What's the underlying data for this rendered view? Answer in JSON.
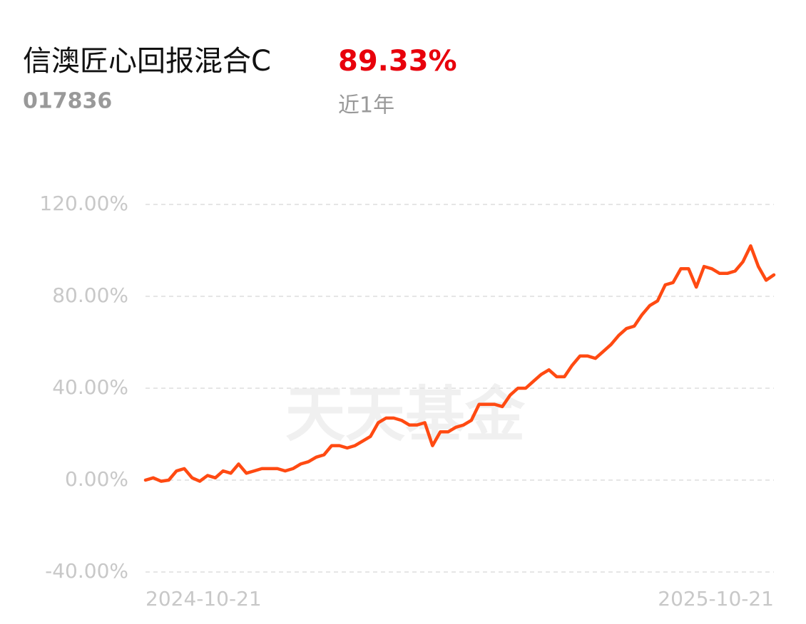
{
  "header": {
    "title": "信澳匠心回报混合C",
    "return": "89.33%",
    "code": "017836",
    "period": "近1年"
  },
  "watermark": "天天基金",
  "chart_data": {
    "type": "line",
    "categories": [
      "2024-10-21",
      null,
      null,
      null,
      null,
      null,
      null,
      null,
      null,
      null,
      null,
      null,
      null,
      null,
      null,
      null,
      null,
      null,
      null,
      null,
      null,
      null,
      null,
      null,
      null,
      null,
      null,
      null,
      null,
      null,
      null,
      null,
      null,
      null,
      null,
      null,
      null,
      null,
      null,
      null,
      null,
      null,
      null,
      null,
      null,
      null,
      null,
      null,
      null,
      null,
      null,
      null,
      null,
      null,
      null,
      null,
      null,
      null,
      null,
      null,
      null,
      null,
      null,
      null,
      null,
      null,
      null,
      null,
      null,
      null,
      null,
      null,
      null,
      null,
      null,
      null,
      null,
      null,
      null,
      null,
      null,
      "2025-10-21"
    ],
    "series": [
      {
        "color": "#ff4a12",
        "values": [
          0,
          1,
          -0.5,
          0,
          4,
          5,
          1,
          -0.5,
          2,
          1,
          4,
          3,
          7,
          3,
          4,
          5,
          5,
          5,
          4,
          5,
          7,
          8,
          10,
          11,
          15,
          15,
          14,
          15,
          17,
          19,
          25,
          27,
          27,
          26,
          24,
          24,
          25,
          15,
          21,
          21,
          23,
          24,
          26,
          33,
          33,
          33,
          32,
          37,
          40,
          40,
          43,
          46,
          48,
          45,
          45,
          50,
          54,
          54,
          53,
          56,
          59,
          63,
          66,
          67,
          72,
          76,
          78,
          85,
          86,
          92,
          92,
          84,
          93,
          92,
          90,
          90,
          91,
          95,
          102,
          93,
          87,
          89.33
        ]
      }
    ],
    "ylim": [
      -40,
      120
    ],
    "yticks": [
      {
        "value": -40,
        "label": "-40.00%"
      },
      {
        "value": 0,
        "label": "0.00%"
      },
      {
        "value": 40,
        "label": "40.00%"
      },
      {
        "value": 80,
        "label": "80.00%"
      },
      {
        "value": 120,
        "label": "120.00%"
      }
    ],
    "grid": true
  }
}
